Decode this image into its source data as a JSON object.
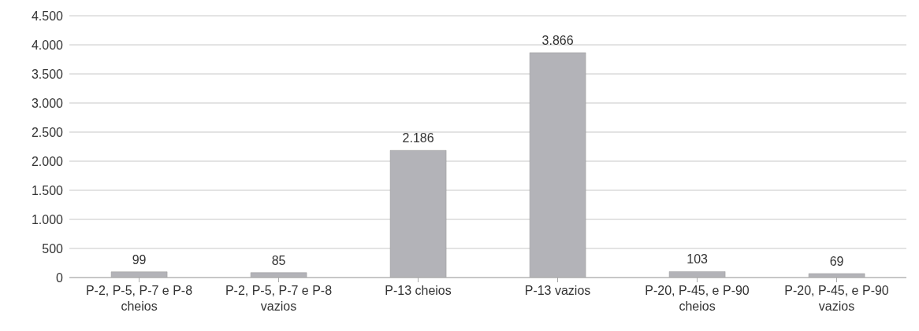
{
  "chart_data": {
    "type": "bar",
    "categories": [
      "P-2, P-5, P-7 e P-8 cheios",
      "P-2, P-5, P-7 e P-8 vazios",
      "P-13 cheios",
      "P-13 vazios",
      "P-20, P-45, e P-90 cheios",
      "P-20, P-45, e P-90 vazios"
    ],
    "values": [
      99,
      85,
      2186,
      3866,
      103,
      69
    ],
    "value_labels": [
      "99",
      "85",
      "2.186",
      "3.866",
      "103",
      "69"
    ],
    "color": "#b3b3b8",
    "ylim": [
      0,
      4500
    ],
    "yticks": [
      0,
      500,
      {
        "value": 1000,
        "label": "1.000"
      },
      {
        "value": 1500,
        "label": "1.500"
      },
      {
        "value": 2000,
        "label": "2.000"
      },
      {
        "value": 2500,
        "label": "2.500"
      },
      {
        "value": 3000,
        "label": "3.000"
      },
      {
        "value": 3500,
        "label": "3.500"
      },
      {
        "value": 4000,
        "label": "4.000"
      },
      {
        "value": 4500,
        "label": "4.500"
      }
    ],
    "grid": "y"
  }
}
